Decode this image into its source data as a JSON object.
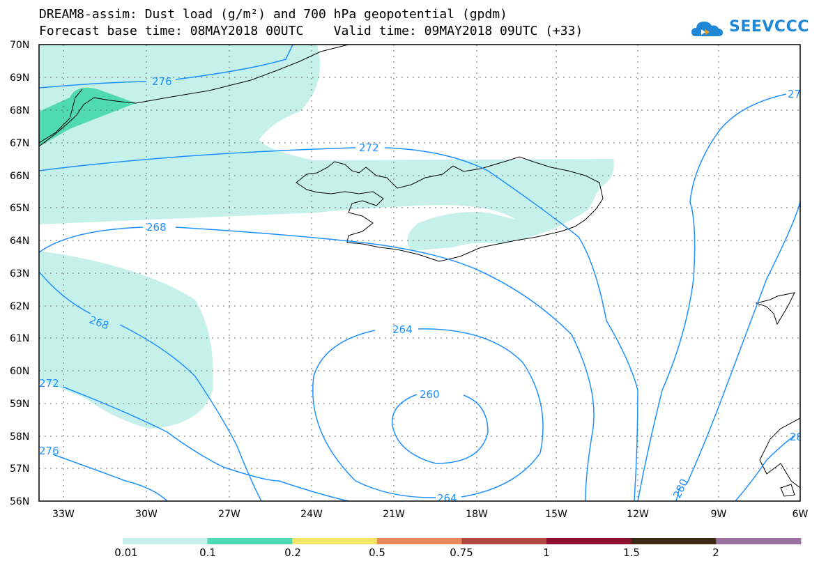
{
  "header": {
    "title": "DREAM8-assim: Dust load (g/m²) and 700 hPa geopotential (gpdm)",
    "subtitle": "Forecast base time: 08MAY2018 00UTC    Valid time: 09MAY2018 09UTC (+33)"
  },
  "logo": {
    "text": "SEEVCCC",
    "icon": "cloud-icon",
    "color": "#1e88d6"
  },
  "map": {
    "lat_labels": [
      "70N",
      "69N",
      "68N",
      "67N",
      "66N",
      "65N",
      "64N",
      "63N",
      "62N",
      "61N",
      "60N",
      "59N",
      "58N",
      "57N",
      "56N"
    ],
    "lon_labels": [
      "33W",
      "30W",
      "27W",
      "24W",
      "21W",
      "18W",
      "15W",
      "12W",
      "9W",
      "6W"
    ],
    "contour_labels": [
      "276",
      "272",
      "268",
      "268",
      "264",
      "260",
      "264",
      "280",
      "272",
      "276",
      "27",
      "28"
    ],
    "dust_colors": {
      "low": "#c6f0ea",
      "mid": "#4fdab0"
    },
    "contour_color": "#1e90ff"
  },
  "colorbar": {
    "labels": [
      "0.01",
      "0.1",
      "0.2",
      "0.5",
      "0.75",
      "1",
      "1.5",
      "2"
    ],
    "colors": [
      "#c6f0ea",
      "#4fdab0",
      "#f3e46a",
      "#e88a5a",
      "#b04a40",
      "#8b1030",
      "#3a2a10",
      "#9a70a0"
    ]
  }
}
